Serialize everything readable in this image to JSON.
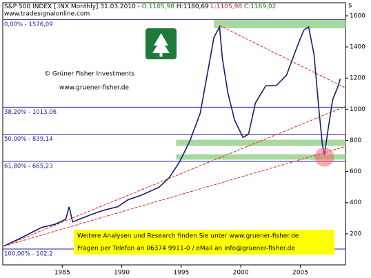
{
  "chart_data": {
    "type": "line",
    "header": {
      "title": "S&P 500 INDEX [.INX Monthly] 31.03.2010 -",
      "open": "O:1105,98",
      "high": "H:1180,69",
      "low": "L:1105,98",
      "close": "C:1169,02"
    },
    "source": "www.tradesignalonline.com",
    "copyright": "© Grüner Fisher Investments",
    "website": "www.gruener-fisher.de",
    "footer": [
      "Weitere Analysen und Research finden Sie unter www.gruener-fisher.de",
      "Fragen per Telefon an 06374 9911-0 / eMail an info@gruener-fisher.de"
    ],
    "y_label": "$",
    "x": [
      1980.07,
      1981.52,
      1983.26,
      1984.42,
      1985.29,
      1985.58,
      1985.87,
      1987.32,
      1988.48,
      1989.64,
      1990.51,
      1991.67,
      1993.12,
      1993.99,
      1994.86,
      1995.72,
      1996.59,
      1997.17,
      1997.75,
      1998.22,
      1998.45,
      1998.91,
      1999.49,
      2000.19,
      2000.65,
      2001.23,
      2002.1,
      2002.97,
      2003.84,
      2004.71,
      2005.29,
      2005.7,
      2006.16,
      2006.57,
      2006.86,
      2007.03,
      2007.32,
      2007.72,
      2008.19,
      2008.36
    ],
    "values": [
      120,
      173,
      240,
      262,
      293,
      373,
      276,
      320,
      351,
      373,
      418,
      449,
      498,
      560,
      662,
      796,
      973,
      1218,
      1462,
      1529,
      1329,
      1107,
      929,
      818,
      840,
      1040,
      1151,
      1151,
      1218,
      1396,
      1507,
      1529,
      1351,
      996,
      773,
      707,
      862,
      1062,
      1151,
      1196
    ],
    "color": "#1a1a6e",
    "xlim": [
      1980,
      2008.8
    ],
    "ylim": [
      0,
      1684
    ],
    "xticks": [
      1985,
      1990,
      1995,
      2000,
      2005
    ],
    "yticks": [
      200,
      400,
      600,
      800,
      1000,
      1200,
      1400,
      1600
    ],
    "levels": [
      {
        "value": 1576.09,
        "label": "0,00% - 1576,09"
      },
      {
        "value": 1013.06,
        "label": "38,20% - 1013,06"
      },
      {
        "value": 839.14,
        "label": "50,00% - 839,14"
      },
      {
        "value": 665.23,
        "label": "61,80% - 665,23"
      },
      {
        "value": 102.2,
        "label": "100,00% - 102,2"
      }
    ],
    "level_color": "#1c1c9c",
    "zones": [
      {
        "from": 1997.75,
        "low": 1520,
        "high": 1573
      },
      {
        "from": 1994.57,
        "low": 764,
        "high": 804
      },
      {
        "from": 1994.57,
        "low": 676,
        "high": 711
      }
    ],
    "zone_color": "#a8d8a0",
    "trendlines": [
      {
        "x": [
          1980.07,
          2008.77
        ],
        "y": [
          120,
          760
        ]
      },
      {
        "x": [
          1980.07,
          2008.77
        ],
        "y": [
          120,
          1018
        ]
      },
      {
        "x": [
          1998.22,
          2008.77
        ],
        "y": [
          1538,
          1138
        ]
      }
    ],
    "trend_color": "#e02020",
    "highlight": {
      "x": 2007.03,
      "y": 693
    }
  }
}
